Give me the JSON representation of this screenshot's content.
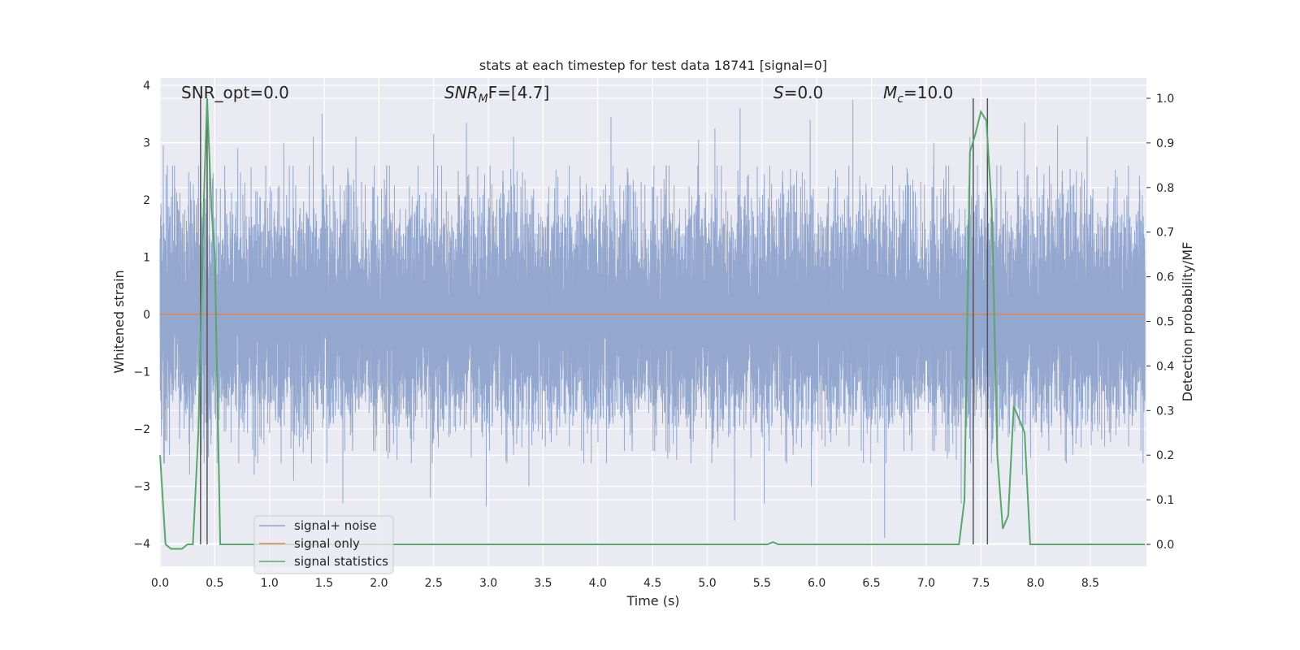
{
  "chart_data": {
    "type": "line",
    "title": "stats at each timestep for test data 18741 [signal=0]",
    "xlabel": "Time (s)",
    "ylabel_left": "Whitened strain",
    "ylabel_right": "Detection probability/MF",
    "xlim": [
      0.0,
      9.0
    ],
    "ylim_left": [
      -4.4,
      4.1
    ],
    "ylim_right": [
      -0.05,
      1.03
    ],
    "x_ticks": [
      0.0,
      0.5,
      1.0,
      1.5,
      2.0,
      2.5,
      3.0,
      3.5,
      4.0,
      4.5,
      5.0,
      5.5,
      6.0,
      6.5,
      7.0,
      7.5,
      8.0,
      8.5
    ],
    "x_tick_labels": [
      "0.0",
      "0.5",
      "1.0",
      "1.5",
      "2.0",
      "2.5",
      "3.0",
      "3.5",
      "4.0",
      "4.5",
      "5.0",
      "5.5",
      "6.0",
      "6.5",
      "7.0",
      "7.5",
      "8.0",
      "8.5"
    ],
    "y_left_ticks": [
      4,
      3,
      2,
      1,
      0,
      -1,
      -2,
      -3,
      -4
    ],
    "y_left_tick_labels": [
      "4",
      "3",
      "2",
      "1",
      "0",
      "−1",
      "−2",
      "−3",
      "−4"
    ],
    "y_right_ticks": [
      1.0,
      0.9,
      0.8,
      0.7,
      0.6,
      0.5,
      0.4,
      0.3,
      0.2,
      0.1,
      0.0
    ],
    "y_right_tick_labels": [
      "1.0",
      "0.9",
      "0.8",
      "0.7",
      "0.6",
      "0.5",
      "0.4",
      "0.3",
      "0.2",
      "0.1",
      "0.0"
    ],
    "grid": true,
    "annotations": {
      "snr_opt": "SNR_opt=0.0",
      "snr_mf_base": "SNR",
      "snr_mf_sub": "M",
      "snr_mf_rest": "F=[4.7]",
      "s_base": "S",
      "s_rest": "=0.0",
      "mc_base": "M",
      "mc_sub": "c",
      "mc_rest": "=10.0"
    },
    "legend": {
      "placement": "lower-left",
      "entries": [
        "signal+ noise",
        "signal only",
        "signal statistics"
      ]
    },
    "vertical_markers_s": [
      0.37,
      0.43,
      7.43,
      7.56
    ],
    "series": [
      {
        "name": "signal+ noise",
        "color": "#8ea3cc",
        "axis": "left",
        "sample_rate_hz": 2048,
        "noise_sigma": 0.9,
        "spike_maxima": [
          [
            0.03,
            2.95
          ],
          [
            0.45,
            3.0
          ],
          [
            0.71,
            2.9
          ],
          [
            1.13,
            3.0
          ],
          [
            1.4,
            3.1
          ],
          [
            1.48,
            3.5
          ],
          [
            1.79,
            3.1
          ],
          [
            2.5,
            3.15
          ],
          [
            2.8,
            3.35
          ],
          [
            3.23,
            3.1
          ],
          [
            4.12,
            3.45
          ],
          [
            4.92,
            3.05
          ],
          [
            5.07,
            3.25
          ],
          [
            5.3,
            3.6
          ],
          [
            5.94,
            3.4
          ],
          [
            6.33,
            3.75
          ],
          [
            7.07,
            3.0
          ],
          [
            7.4,
            3.1
          ],
          [
            7.9,
            3.35
          ],
          [
            8.2,
            3.3
          ],
          [
            8.47,
            3.1
          ]
        ],
        "spike_minima": [
          [
            0.05,
            -2.2
          ],
          [
            0.27,
            -2.8
          ],
          [
            0.86,
            -2.8
          ],
          [
            1.22,
            -2.9
          ],
          [
            1.67,
            -3.3
          ],
          [
            2.47,
            -3.2
          ],
          [
            2.98,
            -3.35
          ],
          [
            3.37,
            -3.0
          ],
          [
            5.25,
            -3.6
          ],
          [
            5.52,
            -3.3
          ],
          [
            5.95,
            -3.0
          ],
          [
            6.62,
            -3.9
          ],
          [
            7.32,
            -3.3
          ],
          [
            7.88,
            -2.8
          ]
        ]
      },
      {
        "name": "signal only",
        "color": "#dd8452",
        "axis": "left",
        "value": 0.0
      },
      {
        "name": "signal statistics",
        "color": "#55a868",
        "axis": "right",
        "points": [
          [
            0.0,
            0.2
          ],
          [
            0.05,
            0.0
          ],
          [
            0.1,
            -0.01
          ],
          [
            0.15,
            -0.01
          ],
          [
            0.2,
            -0.01
          ],
          [
            0.25,
            0.0
          ],
          [
            0.3,
            0.0
          ],
          [
            0.35,
            0.25
          ],
          [
            0.4,
            0.77
          ],
          [
            0.43,
            1.0
          ],
          [
            0.47,
            0.75
          ],
          [
            0.5,
            0.65
          ],
          [
            0.55,
            0.0
          ],
          [
            0.6,
            0.0
          ],
          [
            1.0,
            0.0
          ],
          [
            2.0,
            0.0
          ],
          [
            3.0,
            0.0
          ],
          [
            4.0,
            0.0
          ],
          [
            5.0,
            0.0
          ],
          [
            5.55,
            0.0
          ],
          [
            5.6,
            0.005
          ],
          [
            5.65,
            0.0
          ],
          [
            6.0,
            0.0
          ],
          [
            7.0,
            0.0
          ],
          [
            7.3,
            0.0
          ],
          [
            7.35,
            0.1
          ],
          [
            7.4,
            0.88
          ],
          [
            7.45,
            0.92
          ],
          [
            7.5,
            0.97
          ],
          [
            7.55,
            0.95
          ],
          [
            7.6,
            0.75
          ],
          [
            7.65,
            0.2
          ],
          [
            7.7,
            0.035
          ],
          [
            7.75,
            0.065
          ],
          [
            7.8,
            0.31
          ],
          [
            7.85,
            0.28
          ],
          [
            7.9,
            0.25
          ],
          [
            7.95,
            0.0
          ],
          [
            8.0,
            0.0
          ],
          [
            9.0,
            0.0
          ]
        ]
      }
    ]
  }
}
